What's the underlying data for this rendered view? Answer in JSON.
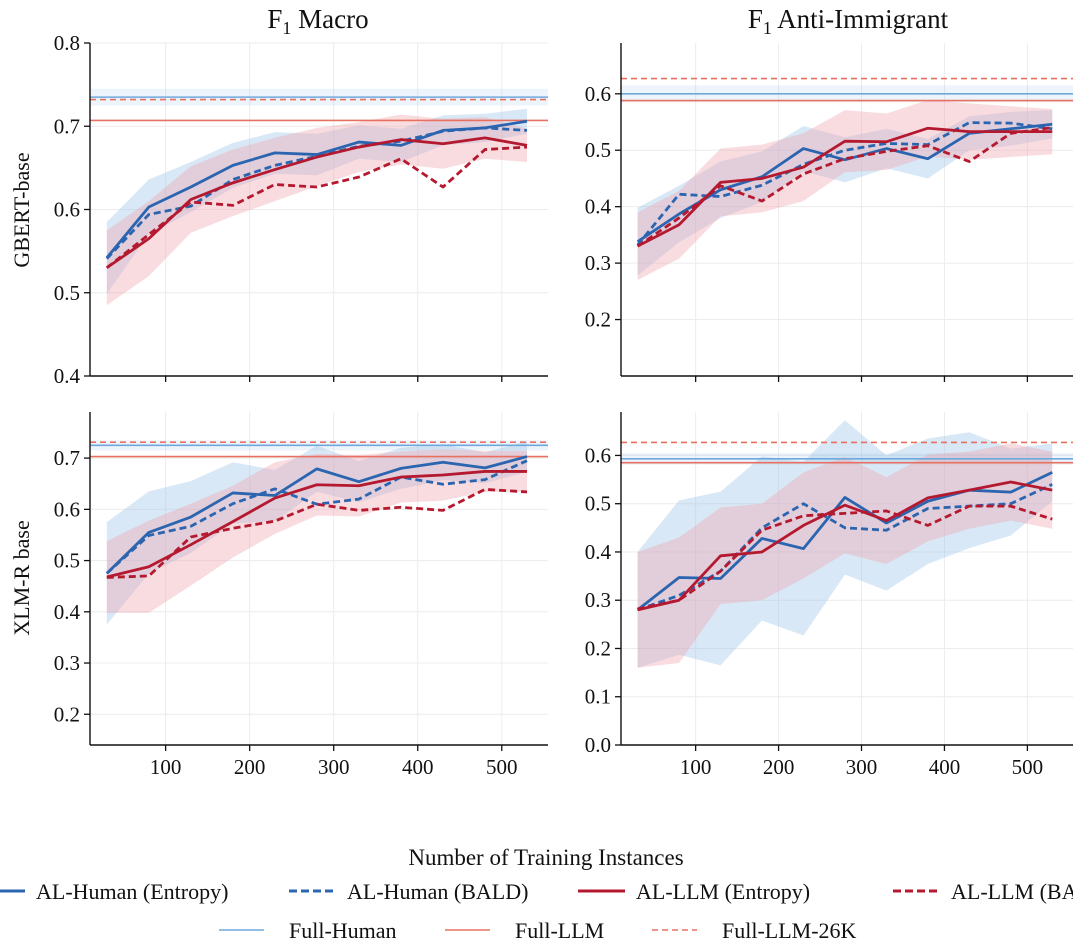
{
  "figure": {
    "xlabel": "Number of Training Instances",
    "col_titles": [
      "F1 Macro",
      "F1 Anti-Immigrant"
    ],
    "row_labels": [
      "GBERT-base",
      "XLM-R base"
    ]
  },
  "legend": {
    "row1": [
      {
        "label": "AL-Human (Entropy)",
        "color": "#2b65b0",
        "dash": "solid",
        "width": "thick"
      },
      {
        "label": "AL-Human (BALD)",
        "color": "#2b65b0",
        "dash": "dashed",
        "width": "thick"
      },
      {
        "label": "AL-LLM (Entropy)",
        "color": "#b5192f",
        "dash": "solid",
        "width": "thick"
      },
      {
        "label": "AL-LLM (BALD)",
        "color": "#b5192f",
        "dash": "dashed",
        "width": "thick"
      }
    ],
    "row2": [
      {
        "label": "Full-Human",
        "color": "#6fa8dc",
        "dash": "solid",
        "width": "thin"
      },
      {
        "label": "Full-LLM",
        "color": "#e87060",
        "dash": "solid",
        "width": "thin"
      },
      {
        "label": "Full-LLM-26K",
        "color": "#e87060",
        "dash": "dashed",
        "width": "thin"
      }
    ]
  },
  "colors": {
    "human": "#2b65b0",
    "llm": "#b5192f",
    "human_band": "#9cc2e8",
    "llm_band": "#f0a3ad",
    "full_human": "#6fa8dc",
    "full_llm": "#e87060"
  },
  "chart_data": [
    {
      "type": "line",
      "row": 0,
      "col": 0,
      "xlim": [
        10,
        555
      ],
      "ylim": [
        0.4,
        0.8
      ],
      "xticks": [
        100,
        200,
        300,
        400,
        500
      ],
      "yticks": [
        0.4,
        0.5,
        0.6,
        0.7,
        0.8
      ],
      "ytick_labels": [
        "0.4",
        "0.5",
        "0.6",
        "0.7",
        "0.8"
      ],
      "show_xtick_labels": false,
      "grid": true,
      "x": [
        30,
        80,
        130,
        180,
        230,
        280,
        330,
        380,
        430,
        480,
        530
      ],
      "series": [
        {
          "name": "AL-Human (Entropy)",
          "values": [
            0.542,
            0.603,
            0.627,
            0.653,
            0.668,
            0.666,
            0.681,
            0.677,
            0.695,
            0.698,
            0.706
          ],
          "band": [
            0.043,
            0.033,
            0.03,
            0.027,
            0.025,
            0.025,
            0.02,
            0.02,
            0.018,
            0.017,
            0.015
          ]
        },
        {
          "name": "AL-Human (BALD)",
          "values": [
            0.541,
            0.594,
            0.604,
            0.636,
            0.653,
            0.664,
            0.676,
            0.682,
            0.694,
            0.698,
            0.695
          ],
          "band": null
        },
        {
          "name": "AL-LLM (Entropy)",
          "values": [
            0.53,
            0.565,
            0.612,
            0.632,
            0.648,
            0.663,
            0.675,
            0.684,
            0.679,
            0.686,
            0.677
          ],
          "band": [
            0.045,
            0.045,
            0.04,
            0.04,
            0.038,
            0.035,
            0.03,
            0.03,
            0.03,
            0.025,
            0.02
          ]
        },
        {
          "name": "AL-LLM (BALD)",
          "values": [
            0.53,
            0.57,
            0.609,
            0.605,
            0.63,
            0.627,
            0.639,
            0.661,
            0.627,
            0.672,
            0.675
          ],
          "band": null
        }
      ],
      "references": [
        {
          "name": "Full-Human",
          "value": 0.735,
          "band": 0.01
        },
        {
          "name": "Full-LLM",
          "value": 0.707,
          "band": 0.0
        },
        {
          "name": "Full-LLM-26K",
          "value": 0.732,
          "band": 0.0
        }
      ]
    },
    {
      "type": "line",
      "row": 0,
      "col": 1,
      "xlim": [
        10,
        555
      ],
      "ylim": [
        0.1,
        0.69
      ],
      "xticks": [
        100,
        200,
        300,
        400,
        500
      ],
      "yticks": [
        0.2,
        0.3,
        0.4,
        0.5,
        0.6
      ],
      "ytick_labels": [
        "0.2",
        "0.3",
        "0.4",
        "0.5",
        "0.6"
      ],
      "show_xtick_labels": false,
      "grid": true,
      "x": [
        30,
        80,
        130,
        180,
        230,
        280,
        330,
        380,
        430,
        480,
        530
      ],
      "series": [
        {
          "name": "AL-Human (Entropy)",
          "values": [
            0.338,
            0.387,
            0.43,
            0.453,
            0.503,
            0.483,
            0.503,
            0.485,
            0.53,
            0.538,
            0.546
          ],
          "band": [
            0.06,
            0.05,
            0.05,
            0.045,
            0.04,
            0.04,
            0.035,
            0.035,
            0.03,
            0.03,
            0.025
          ]
        },
        {
          "name": "AL-Human (BALD)",
          "values": [
            0.332,
            0.422,
            0.418,
            0.438,
            0.475,
            0.5,
            0.512,
            0.51,
            0.549,
            0.548,
            0.538
          ],
          "band": null
        },
        {
          "name": "AL-LLM (Entropy)",
          "values": [
            0.33,
            0.368,
            0.443,
            0.45,
            0.47,
            0.516,
            0.515,
            0.539,
            0.533,
            0.533,
            0.533
          ],
          "band": [
            0.06,
            0.06,
            0.06,
            0.06,
            0.06,
            0.055,
            0.05,
            0.05,
            0.05,
            0.045,
            0.04
          ]
        },
        {
          "name": "AL-LLM (BALD)",
          "values": [
            0.33,
            0.38,
            0.437,
            0.41,
            0.458,
            0.485,
            0.498,
            0.508,
            0.48,
            0.53,
            0.54
          ],
          "band": null
        }
      ],
      "references": [
        {
          "name": "Full-Human",
          "value": 0.6,
          "band": 0.015
        },
        {
          "name": "Full-LLM",
          "value": 0.588,
          "band": 0.0
        },
        {
          "name": "Full-LLM-26K",
          "value": 0.627,
          "band": 0.0
        }
      ]
    },
    {
      "type": "line",
      "row": 1,
      "col": 0,
      "xlim": [
        10,
        555
      ],
      "ylim": [
        0.14,
        0.79
      ],
      "xticks": [
        100,
        200,
        300,
        400,
        500
      ],
      "xtick_labels": [
        "100",
        "200",
        "300",
        "400",
        "500"
      ],
      "yticks": [
        0.2,
        0.3,
        0.4,
        0.5,
        0.6,
        0.7
      ],
      "ytick_labels": [
        "0.2",
        "0.3",
        "0.4",
        "0.5",
        "0.6",
        "0.7"
      ],
      "show_xtick_labels": true,
      "grid": true,
      "x": [
        30,
        80,
        130,
        180,
        230,
        280,
        330,
        380,
        430,
        480,
        530
      ],
      "series": [
        {
          "name": "AL-Human (Entropy)",
          "values": [
            0.475,
            0.555,
            0.585,
            0.632,
            0.627,
            0.679,
            0.654,
            0.68,
            0.692,
            0.681,
            0.703
          ],
          "band": [
            0.1,
            0.08,
            0.07,
            0.06,
            0.05,
            0.045,
            0.04,
            0.04,
            0.035,
            0.03,
            0.03
          ]
        },
        {
          "name": "AL-Human (BALD)",
          "values": [
            0.475,
            0.549,
            0.567,
            0.611,
            0.64,
            0.61,
            0.62,
            0.663,
            0.649,
            0.658,
            0.695
          ],
          "band": null
        },
        {
          "name": "AL-LLM (Entropy)",
          "values": [
            0.468,
            0.488,
            0.531,
            0.576,
            0.622,
            0.648,
            0.646,
            0.663,
            0.667,
            0.674,
            0.674
          ],
          "band": [
            0.07,
            0.09,
            0.08,
            0.07,
            0.07,
            0.06,
            0.06,
            0.05,
            0.05,
            0.04,
            0.04
          ]
        },
        {
          "name": "AL-LLM (BALD)",
          "values": [
            0.467,
            0.47,
            0.546,
            0.563,
            0.577,
            0.61,
            0.598,
            0.604,
            0.598,
            0.639,
            0.634
          ],
          "band": null
        }
      ],
      "references": [
        {
          "name": "Full-Human",
          "value": 0.725,
          "band": 0.01
        },
        {
          "name": "Full-LLM",
          "value": 0.703,
          "band": 0.0
        },
        {
          "name": "Full-LLM-26K",
          "value": 0.731,
          "band": 0.0
        }
      ]
    },
    {
      "type": "line",
      "row": 1,
      "col": 1,
      "xlim": [
        10,
        555
      ],
      "ylim": [
        0.0,
        0.69
      ],
      "xticks": [
        100,
        200,
        300,
        400,
        500
      ],
      "xtick_labels": [
        "100",
        "200",
        "300",
        "400",
        "500"
      ],
      "yticks": [
        0.0,
        0.1,
        0.2,
        0.3,
        0.4,
        0.5,
        0.6
      ],
      "ytick_labels": [
        "0.0",
        "0.1",
        "0.2",
        "0.3",
        "0.4",
        "0.5",
        "0.6"
      ],
      "show_xtick_labels": true,
      "grid": true,
      "x": [
        30,
        80,
        130,
        180,
        230,
        280,
        330,
        380,
        430,
        480,
        530
      ],
      "series": [
        {
          "name": "AL-Human (Entropy)",
          "values": [
            0.28,
            0.347,
            0.345,
            0.428,
            0.407,
            0.513,
            0.46,
            0.505,
            0.528,
            0.524,
            0.565
          ],
          "band": [
            0.12,
            0.16,
            0.18,
            0.17,
            0.18,
            0.16,
            0.14,
            0.13,
            0.12,
            0.09,
            0.06
          ]
        },
        {
          "name": "AL-Human (BALD)",
          "values": [
            0.28,
            0.31,
            0.36,
            0.45,
            0.5,
            0.45,
            0.445,
            0.49,
            0.495,
            0.5,
            0.54
          ],
          "band": null
        },
        {
          "name": "AL-LLM (Entropy)",
          "values": [
            0.28,
            0.3,
            0.392,
            0.4,
            0.455,
            0.497,
            0.465,
            0.512,
            0.528,
            0.545,
            0.528
          ],
          "band": [
            0.12,
            0.13,
            0.1,
            0.1,
            0.11,
            0.1,
            0.09,
            0.09,
            0.08,
            0.08,
            0.08
          ]
        },
        {
          "name": "AL-LLM (BALD)",
          "values": [
            0.282,
            0.3,
            0.36,
            0.445,
            0.475,
            0.48,
            0.485,
            0.455,
            0.495,
            0.495,
            0.468
          ],
          "band": null
        }
      ],
      "references": [
        {
          "name": "Full-Human",
          "value": 0.593,
          "band": 0.012
        },
        {
          "name": "Full-LLM",
          "value": 0.585,
          "band": 0.0
        },
        {
          "name": "Full-LLM-26K",
          "value": 0.627,
          "band": 0.0
        }
      ]
    }
  ]
}
